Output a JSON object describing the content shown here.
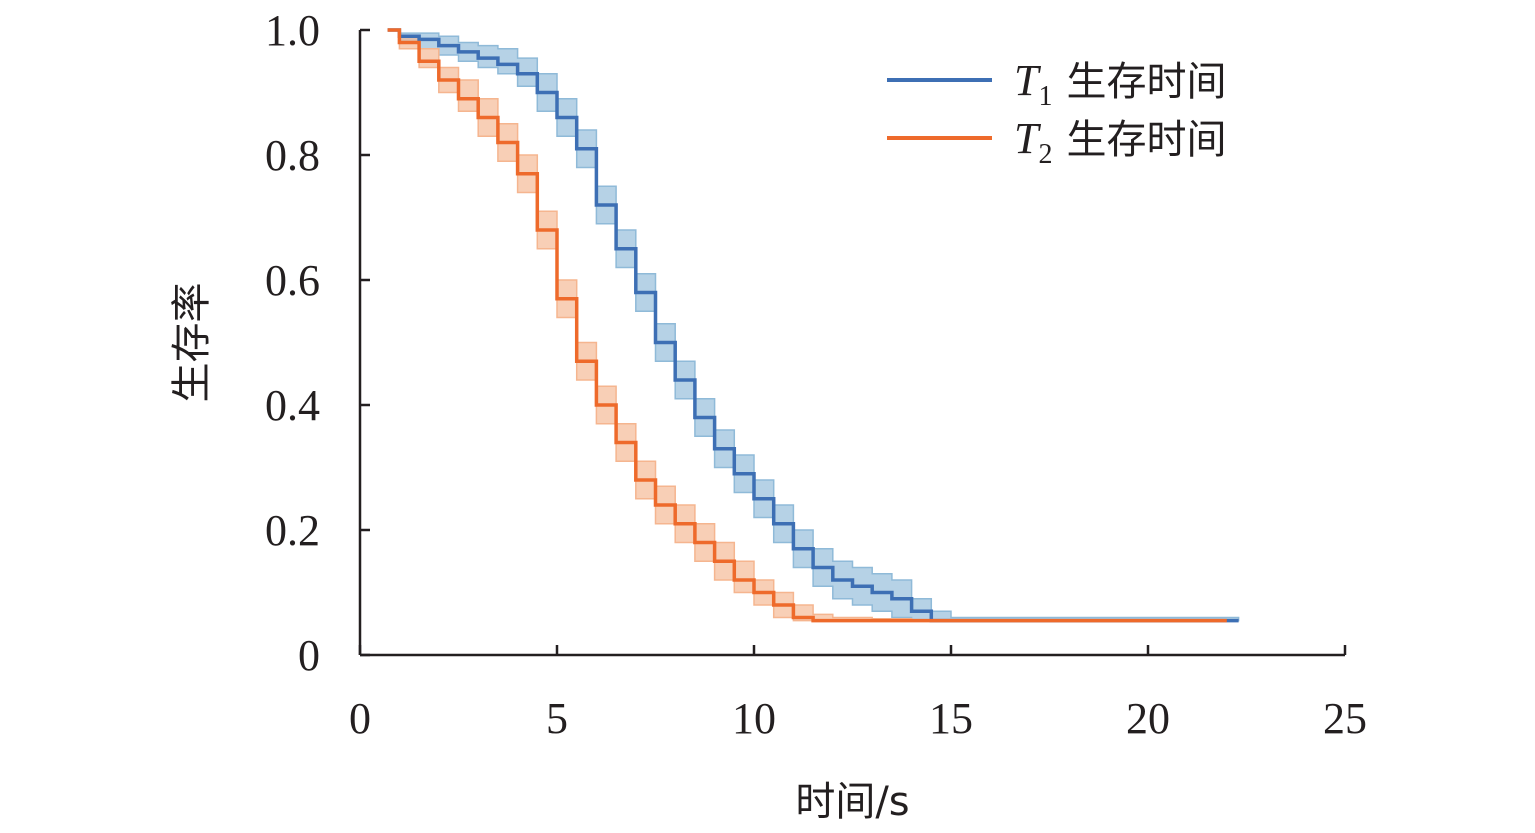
{
  "chart_data": {
    "type": "line",
    "title": "",
    "xlabel": "时间/s",
    "ylabel": "生存率",
    "xlim": [
      0,
      25
    ],
    "ylim": [
      0,
      1.0
    ],
    "xticks": [
      "0",
      "5",
      "10",
      "15",
      "20",
      "25"
    ],
    "yticks": [
      "0",
      "0.2",
      "0.4",
      "0.6",
      "0.8",
      "1.0"
    ],
    "grid": false,
    "legend_position": "top-right",
    "series": [
      {
        "name": "T1 生存时间",
        "name_symbol": "T",
        "name_subscript": "1",
        "name_text": "生存时间",
        "color": "#3d6fb4",
        "band_color": "#8fbad8",
        "x": [
          0.7,
          1.0,
          1.5,
          2.0,
          2.5,
          3.0,
          3.5,
          4.0,
          4.5,
          5.0,
          5.5,
          6.0,
          6.5,
          7.0,
          7.5,
          8.0,
          8.5,
          9.0,
          9.5,
          10.0,
          10.5,
          11.0,
          11.5,
          12.0,
          12.5,
          13.0,
          13.5,
          14.0,
          14.5,
          15.0,
          16.0,
          18.0,
          20.0,
          22.3
        ],
        "y": [
          1.0,
          0.99,
          0.985,
          0.975,
          0.965,
          0.955,
          0.945,
          0.93,
          0.9,
          0.86,
          0.81,
          0.72,
          0.65,
          0.58,
          0.5,
          0.44,
          0.38,
          0.33,
          0.29,
          0.25,
          0.21,
          0.17,
          0.14,
          0.12,
          0.11,
          0.1,
          0.09,
          0.07,
          0.055,
          0.055,
          0.055,
          0.055,
          0.055,
          0.055
        ],
        "lower": [
          1.0,
          0.98,
          0.97,
          0.96,
          0.95,
          0.94,
          0.93,
          0.91,
          0.87,
          0.83,
          0.78,
          0.69,
          0.62,
          0.55,
          0.47,
          0.41,
          0.35,
          0.3,
          0.26,
          0.22,
          0.18,
          0.14,
          0.11,
          0.09,
          0.08,
          0.07,
          0.06,
          0.055,
          0.055,
          0.055,
          0.055,
          0.055,
          0.055,
          0.055
        ],
        "upper": [
          1.0,
          0.995,
          0.995,
          0.99,
          0.98,
          0.975,
          0.97,
          0.955,
          0.93,
          0.89,
          0.84,
          0.75,
          0.68,
          0.61,
          0.53,
          0.47,
          0.41,
          0.36,
          0.32,
          0.28,
          0.24,
          0.2,
          0.17,
          0.15,
          0.14,
          0.13,
          0.12,
          0.09,
          0.07,
          0.06,
          0.06,
          0.06,
          0.06,
          0.055
        ]
      },
      {
        "name": "T2 生存时间",
        "name_symbol": "T",
        "name_subscript": "2",
        "name_text": "生存时间",
        "color": "#ee6a2b",
        "band_color": "#f5b58f",
        "x": [
          0.7,
          1.0,
          1.5,
          2.0,
          2.5,
          3.0,
          3.5,
          4.0,
          4.5,
          5.0,
          5.5,
          6.0,
          6.5,
          7.0,
          7.5,
          8.0,
          8.5,
          9.0,
          9.5,
          10.0,
          10.5,
          11.0,
          11.5,
          12.0,
          13.0,
          14.0,
          16.0,
          18.0,
          20.0,
          22.0
        ],
        "y": [
          1.0,
          0.98,
          0.95,
          0.92,
          0.89,
          0.86,
          0.82,
          0.77,
          0.68,
          0.57,
          0.47,
          0.4,
          0.34,
          0.28,
          0.24,
          0.21,
          0.18,
          0.15,
          0.12,
          0.1,
          0.08,
          0.06,
          0.055,
          0.055,
          0.055,
          0.055,
          0.055,
          0.055,
          0.055,
          0.055
        ],
        "lower": [
          1.0,
          0.97,
          0.94,
          0.9,
          0.87,
          0.83,
          0.79,
          0.74,
          0.65,
          0.54,
          0.44,
          0.37,
          0.31,
          0.25,
          0.21,
          0.18,
          0.15,
          0.12,
          0.1,
          0.08,
          0.06,
          0.055,
          0.055,
          0.055,
          0.055,
          0.055,
          0.055,
          0.055,
          0.055,
          0.055
        ],
        "upper": [
          1.0,
          0.99,
          0.97,
          0.94,
          0.92,
          0.89,
          0.85,
          0.8,
          0.71,
          0.6,
          0.5,
          0.43,
          0.37,
          0.31,
          0.27,
          0.24,
          0.21,
          0.18,
          0.15,
          0.12,
          0.1,
          0.08,
          0.065,
          0.06,
          0.058,
          0.056,
          0.055,
          0.055,
          0.055,
          0.055
        ]
      }
    ]
  }
}
